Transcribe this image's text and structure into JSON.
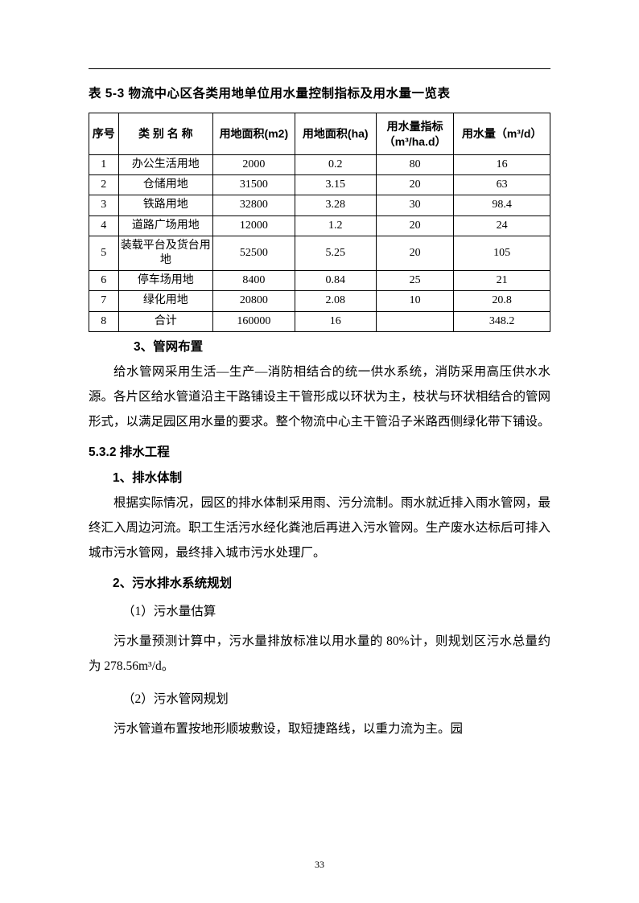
{
  "title": "表 5-3 物流中心区各类用地单位用水量控制指标及用水量一览表",
  "table": {
    "headers": [
      "序号",
      "类 别 名 称",
      "用地面积(m2)",
      "用地面积(ha)",
      "用水量指标（m³/ha.d）",
      "用水量（m³/d）"
    ],
    "rows": [
      [
        "1",
        "办公生活用地",
        "2000",
        "0.2",
        "80",
        "16"
      ],
      [
        "2",
        "仓储用地",
        "31500",
        "3.15",
        "20",
        "63"
      ],
      [
        "3",
        "铁路用地",
        "32800",
        "3.28",
        "30",
        "98.4"
      ],
      [
        "4",
        "道路广场用地",
        "12000",
        "1.2",
        "20",
        "24"
      ],
      [
        "5",
        "装载平台及货台用地",
        "52500",
        "5.25",
        "20",
        "105"
      ],
      [
        "6",
        "停车场用地",
        "8400",
        "0.84",
        "25",
        "21"
      ],
      [
        "7",
        "绿化用地",
        "20800",
        "2.08",
        "10",
        "20.8"
      ],
      [
        "8",
        "合计",
        "160000",
        "16",
        "",
        "348.2"
      ]
    ],
    "tall_row_index": 4
  },
  "sec3": "3、管网布置",
  "para1": "给水管网采用生活—生产—消防相结合的统一供水系统，消防采用高压供水水源。各片区给水管道沿主干路铺设主干管形成以环状为主，枝状与环状相结合的管网形式，以满足园区用水量的要求。整个物流中心主干管沿子米路西侧绿化带下铺设。",
  "h532": "5.3.2 排水工程",
  "sub1": "1、排水体制",
  "para2": "根据实际情况，园区的排水体制采用雨、污分流制。雨水就近排入雨水管网，最终汇入周边河流。职工生活污水经化粪池后再进入污水管网。生产废水达标后可排入城市污水管网，最终排入城市污水处理厂。",
  "sub2": "2、污水排水系统规划",
  "item1": "（1）污水量估算",
  "para3": "污水量预测计算中，污水量排放标准以用水量的 80%计，则规划区污水总量约为 278.56m³/d。",
  "item2": "（2）污水管网规划",
  "para4": "污水管道布置按地形顺坡敷设，取短捷路线，以重力流为主。园",
  "page": "33"
}
